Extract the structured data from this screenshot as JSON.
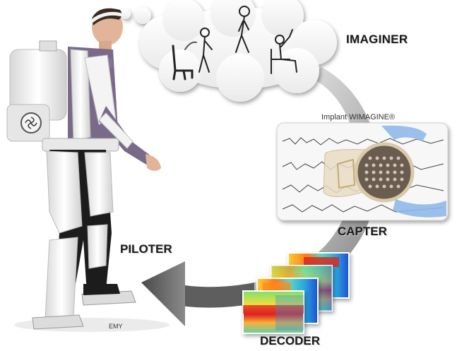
{
  "labels": {
    "imaginer": "IMAGINER",
    "implant": "Implant WIMAGINE®",
    "capter": "CAPTER",
    "piloter": "PILOTER",
    "decoder": "DECODER",
    "emy": "EMY"
  },
  "colors": {
    "arrow": "#8a8a8a",
    "exoskeleton": "#f4f4f4",
    "shirt": "#7a6a8a",
    "pants": "#1c1c1c",
    "skin": "#e2b49a",
    "glove": "#8fb8e8",
    "implant_grid": "#5a5048"
  }
}
